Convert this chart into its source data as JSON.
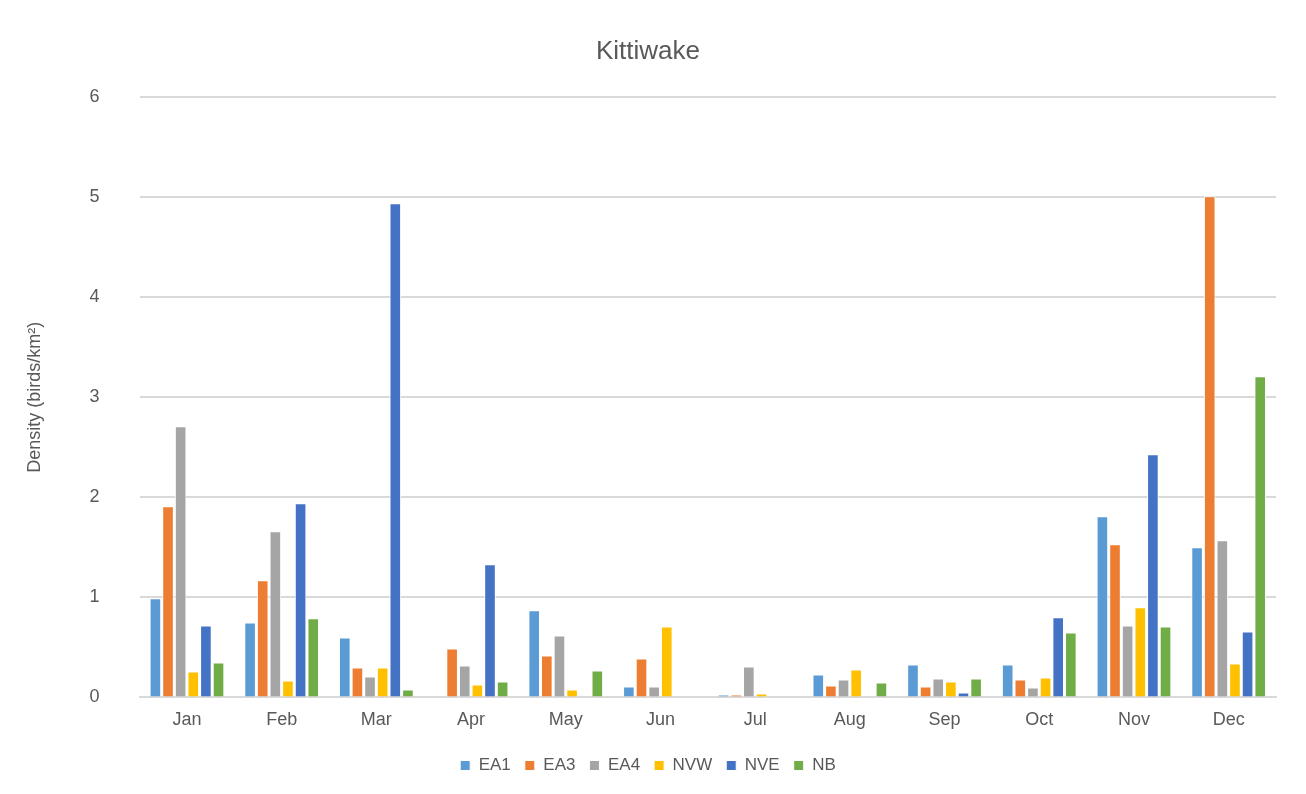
{
  "chart_data": {
    "type": "bar",
    "title": "Kittiwake",
    "ylabel": "Density (birds/km²)",
    "categories": [
      "Jan",
      "Feb",
      "Mar",
      "Apr",
      "May",
      "Jun",
      "Jul",
      "Aug",
      "Sep",
      "Oct",
      "Nov",
      "Dec"
    ],
    "series": [
      {
        "name": "EA1",
        "color": "#5b9bd5",
        "values": [
          0.99,
          0.75,
          0.6,
          null,
          0.87,
          0.11,
          0.03,
          0.23,
          0.33,
          0.33,
          1.81,
          1.5
        ]
      },
      {
        "name": "EA3",
        "color": "#ed7d31",
        "values": [
          1.91,
          1.17,
          0.3,
          0.49,
          0.42,
          0.39,
          0.03,
          0.12,
          0.11,
          0.18,
          1.53,
          5.01
        ]
      },
      {
        "name": "EA4",
        "color": "#a5a5a5",
        "values": [
          2.71,
          1.66,
          0.21,
          0.32,
          0.62,
          0.11,
          0.31,
          0.18,
          0.19,
          0.1,
          0.72,
          1.57
        ]
      },
      {
        "name": "NVW",
        "color": "#ffc000",
        "values": [
          0.26,
          0.17,
          0.3,
          0.13,
          0.08,
          0.71,
          0.04,
          0.28,
          0.16,
          0.2,
          0.9,
          0.34
        ]
      },
      {
        "name": "NVE",
        "color": "#4472c4",
        "values": [
          0.72,
          1.94,
          4.94,
          1.33,
          null,
          null,
          null,
          null,
          0.05,
          0.8,
          2.43,
          0.66
        ]
      },
      {
        "name": "NB",
        "color": "#70ad47",
        "values": [
          0.35,
          0.79,
          0.08,
          0.16,
          0.27,
          null,
          null,
          0.15,
          0.19,
          0.65,
          0.71,
          3.21
        ]
      }
    ],
    "ylim": [
      0,
      6
    ],
    "yticks": [
      0,
      1,
      2,
      3,
      4,
      5,
      6
    ],
    "grid": "y",
    "legend": "bottom"
  }
}
